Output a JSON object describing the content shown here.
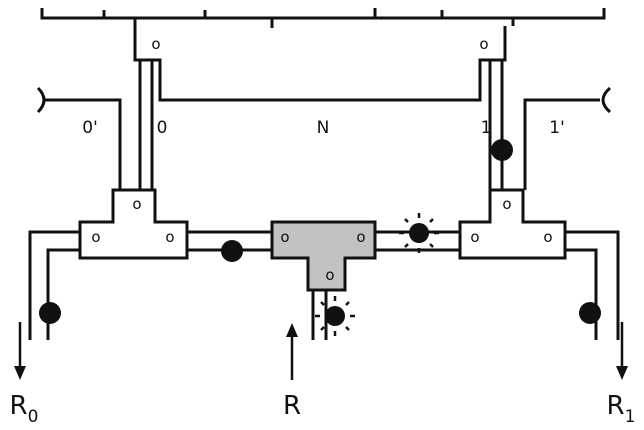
{
  "diagram": {
    "wire_labels": {
      "left_outer": "0'",
      "left_inner": "0",
      "middle": "N",
      "right_inner": "1",
      "right_outer": "1'"
    },
    "port_label": "o",
    "outputs": {
      "left": {
        "main": "R",
        "sub": "0"
      },
      "center": {
        "main": "R"
      },
      "right": {
        "main": "R",
        "sub": "1"
      }
    },
    "colors": {
      "line": "#111111",
      "active_switch_fill": "#c2c2c2",
      "background": "#ffffff"
    }
  }
}
